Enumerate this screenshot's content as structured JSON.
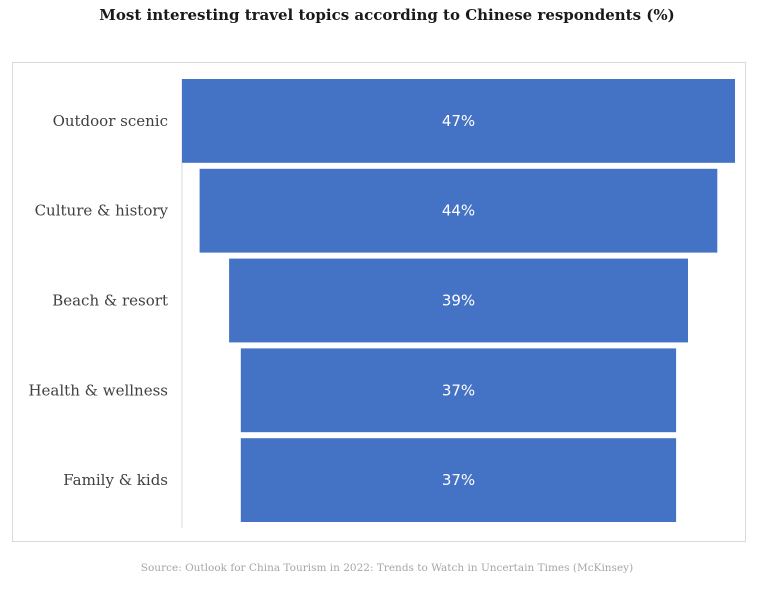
{
  "title": "Most interesting travel topics according to Chinese respondents (%)",
  "source": "Source: Outlook for China Tourism in 2022: Trends to Watch in Uncertain Times (McKinsey)",
  "colors": {
    "bar": "#4472C4",
    "label_text": "#404040",
    "value_text": "#ffffff",
    "frame_border": "#d9d9d9",
    "axis_line": "#d9d9d9"
  },
  "chart_data": {
    "type": "funnel",
    "categories": [
      "Outdoor scenic",
      "Culture & history",
      "Beach & resort",
      "Health & wellness",
      "Family & kids"
    ],
    "values": [
      47,
      44,
      39,
      37,
      37
    ],
    "value_labels": [
      "47%",
      "44%",
      "39%",
      "37%",
      "37%"
    ],
    "unit": "%",
    "title": "Most interesting travel topics according to Chinese respondents (%)",
    "grid": false,
    "legend": "none"
  }
}
